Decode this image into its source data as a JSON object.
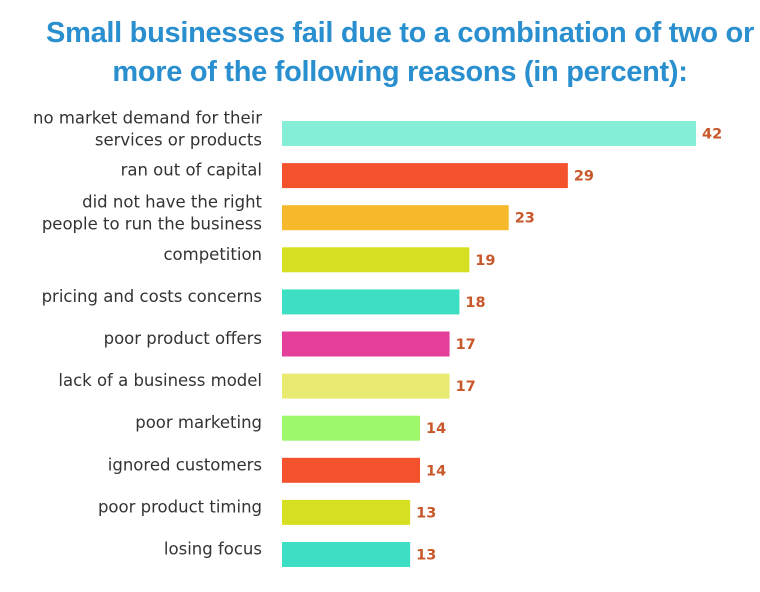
{
  "title": {
    "line1": "Small businesses fail due to a combination of two or",
    "line2": "more of the following reasons (in percent):"
  },
  "chart_data": {
    "type": "bar",
    "orientation": "horizontal",
    "title": "Small businesses fail due to a combination of two or more of the following reasons (in percent):",
    "xlabel": "",
    "ylabel": "",
    "xlim": [
      0,
      42
    ],
    "grid": false,
    "legend": "none",
    "categories": [
      [
        "no market demand for their",
        "services or products"
      ],
      [
        "ran out of capital"
      ],
      [
        "did not have the right",
        "people to run the business"
      ],
      [
        "competition"
      ],
      [
        "pricing and costs concerns"
      ],
      [
        "poor product offers"
      ],
      [
        "lack of a business model"
      ],
      [
        "poor marketing"
      ],
      [
        "ignored customers"
      ],
      [
        "poor product timing"
      ],
      [
        "losing focus"
      ]
    ],
    "values": [
      42,
      29,
      23,
      19,
      18,
      17,
      17,
      14,
      14,
      13,
      13
    ],
    "colors": [
      "#84eed6",
      "#f4522d",
      "#f6b92b",
      "#d6e021",
      "#3ddfc4",
      "#e43f9b",
      "#e9ea71",
      "#9ef86b",
      "#f4522d",
      "#d6e021",
      "#3ddfc4"
    ]
  }
}
